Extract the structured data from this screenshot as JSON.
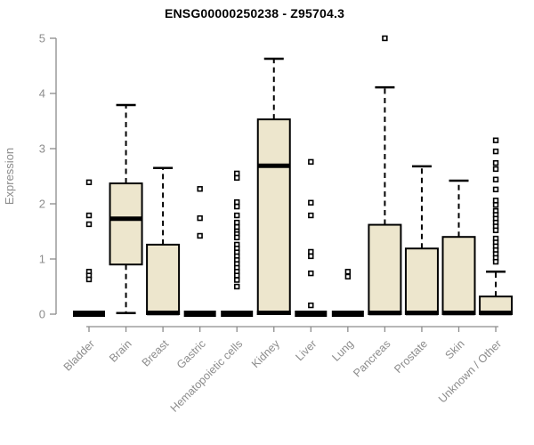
{
  "chart_data": {
    "type": "boxplot",
    "title": "ENSG00000250238 - Z95704.3",
    "ylabel": "Expression",
    "xlabel": "",
    "ylim": [
      0,
      5
    ],
    "yticks": [
      0,
      1,
      2,
      3,
      4,
      5
    ],
    "grid": false,
    "legend": "none",
    "outlier_marker": "open-square",
    "categories": [
      "Bladder",
      "Brain",
      "Breast",
      "Gastric",
      "Hematopoietic cells",
      "Kidney",
      "Liver",
      "Lung",
      "Pancreas",
      "Prostate",
      "Skin",
      "Unknown / Other"
    ],
    "series": [
      {
        "name": "Bladder",
        "low": 0,
        "q1": 0,
        "median": 0,
        "q3": 0,
        "high": 0,
        "outliers": [
          2.39,
          1.79,
          1.63,
          0.77,
          0.7,
          0.63
        ]
      },
      {
        "name": "Brain",
        "low": 0.02,
        "q1": 0.9,
        "median": 1.73,
        "q3": 2.37,
        "high": 3.79,
        "outliers": []
      },
      {
        "name": "Breast",
        "low": 0,
        "q1": 0,
        "median": 0.02,
        "q3": 1.26,
        "high": 2.65,
        "outliers": []
      },
      {
        "name": "Gastric",
        "low": 0,
        "q1": 0,
        "median": 0,
        "q3": 0,
        "high": 0,
        "outliers": [
          2.27,
          1.74,
          1.42
        ]
      },
      {
        "name": "Hematopoietic cells",
        "low": 0,
        "q1": 0,
        "median": 0,
        "q3": 0,
        "high": 0,
        "outliers": [
          2.55,
          2.47,
          2.03,
          1.95,
          1.79,
          1.66,
          1.58,
          1.5,
          1.45,
          1.39,
          1.26,
          1.19,
          1.12,
          1.05,
          0.98,
          0.91,
          0.84,
          0.77,
          0.7,
          0.62,
          0.5
        ]
      },
      {
        "name": "Kidney",
        "low": 0,
        "q1": 0,
        "median": 2.69,
        "q3": 3.53,
        "high": 4.63,
        "outliers": []
      },
      {
        "name": "Liver",
        "low": 0,
        "q1": 0,
        "median": 0,
        "q3": 0,
        "high": 0,
        "outliers": [
          2.76,
          2.02,
          1.79,
          1.13,
          1.05,
          0.74,
          0.16
        ]
      },
      {
        "name": "Lung",
        "low": 0,
        "q1": 0,
        "median": 0,
        "q3": 0,
        "high": 0,
        "outliers": [
          0.77,
          0.68
        ]
      },
      {
        "name": "Pancreas",
        "low": 0,
        "q1": 0,
        "median": 0.02,
        "q3": 1.62,
        "high": 4.11,
        "outliers": [
          5.0
        ]
      },
      {
        "name": "Prostate",
        "low": 0,
        "q1": 0,
        "median": 0.02,
        "q3": 1.19,
        "high": 2.68,
        "outliers": []
      },
      {
        "name": "Skin",
        "low": 0,
        "q1": 0,
        "median": 0.02,
        "q3": 1.4,
        "high": 2.42,
        "outliers": []
      },
      {
        "name": "Unknown / Other",
        "low": 0,
        "q1": 0,
        "median": 0.02,
        "q3": 0.32,
        "high": 0.77,
        "outliers": [
          3.15,
          2.95,
          2.74,
          2.63,
          2.44,
          2.26,
          2.06,
          1.98,
          1.87,
          1.8,
          1.73,
          1.66,
          1.59,
          1.52,
          1.37,
          1.3,
          1.23,
          1.16,
          1.09,
          1.02,
          0.95
        ]
      }
    ],
    "colors": {
      "box_fill": "#EDE6CD",
      "box_stroke": "#000000",
      "median": "#000000",
      "whisker": "#000000",
      "outlier": "#000000",
      "axis": "#8C8C8C",
      "tick_label": "#8C8C8C",
      "title": "#000000",
      "background": "#FFFFFF"
    }
  }
}
